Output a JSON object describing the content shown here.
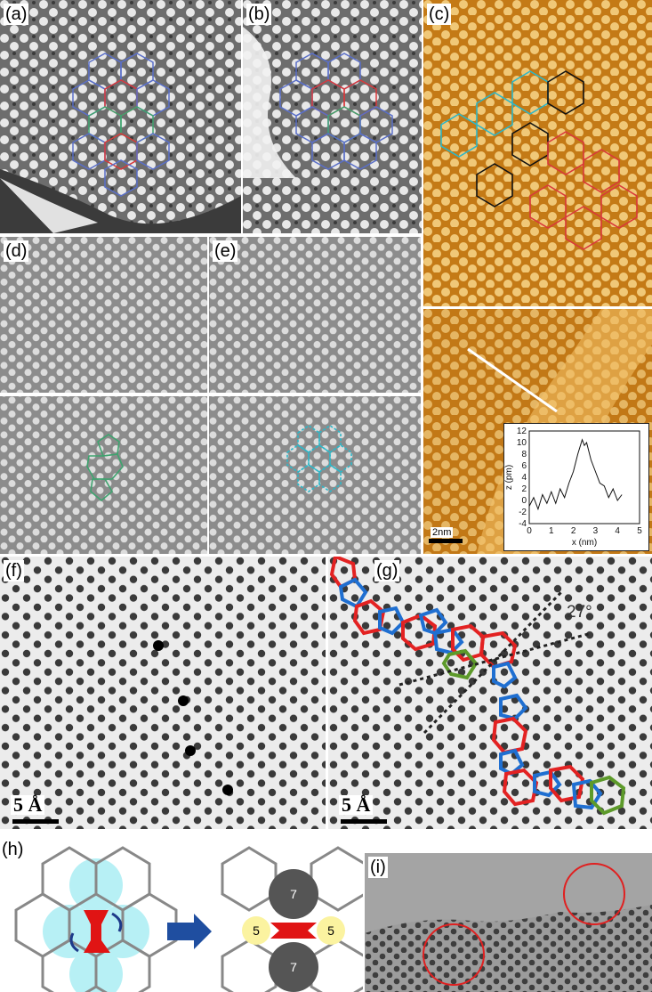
{
  "panels": {
    "a": {
      "label": "(a)"
    },
    "b": {
      "label": "(b)"
    },
    "c": {
      "label": "(c)"
    },
    "d": {
      "label": "(d)"
    },
    "e": {
      "label": "(e)"
    },
    "f": {
      "label": "(f)",
      "scale": "5 Å"
    },
    "g": {
      "label": "(g)",
      "scale": "5 Å",
      "angle": "27°"
    },
    "h": {
      "label": "(h)",
      "ring_labels": [
        "5",
        "7",
        "7",
        "5"
      ]
    },
    "i": {
      "label": "(i)"
    },
    "stm": {
      "scale": "2nm"
    }
  },
  "inset_profile": {
    "ylabel": "z (pm)",
    "xlabel": "x (nm)",
    "yticks": [
      "12",
      "10",
      "8",
      "6",
      "4",
      "2",
      "0",
      "-2",
      "-4"
    ],
    "xticks": [
      "0",
      "1",
      "2",
      "3",
      "4",
      "5"
    ],
    "x": [
      0,
      0.2,
      0.4,
      0.6,
      0.8,
      1.0,
      1.2,
      1.4,
      1.6,
      1.8,
      2.0,
      2.2,
      2.4,
      2.5,
      2.6,
      2.8,
      3.0,
      3.2,
      3.4,
      3.6,
      3.8,
      4.0,
      4.2
    ],
    "y": [
      -1,
      0.5,
      -1.5,
      1,
      -0.5,
      1.5,
      -0.5,
      2,
      0.5,
      3,
      5,
      8,
      10.5,
      9.5,
      10,
      7,
      5,
      3,
      2.5,
      0.5,
      2,
      0,
      1
    ]
  },
  "colors": {
    "blue": "#5a6fc8",
    "red": "#d9383a",
    "green": "#3fa36f",
    "teal": "#2bb7c9",
    "black": "#111111",
    "stm_orange": "#c9841e",
    "hex_blue": "#1f6fd1",
    "hex_red": "#e32222",
    "hex_green": "#5d9a2a"
  }
}
